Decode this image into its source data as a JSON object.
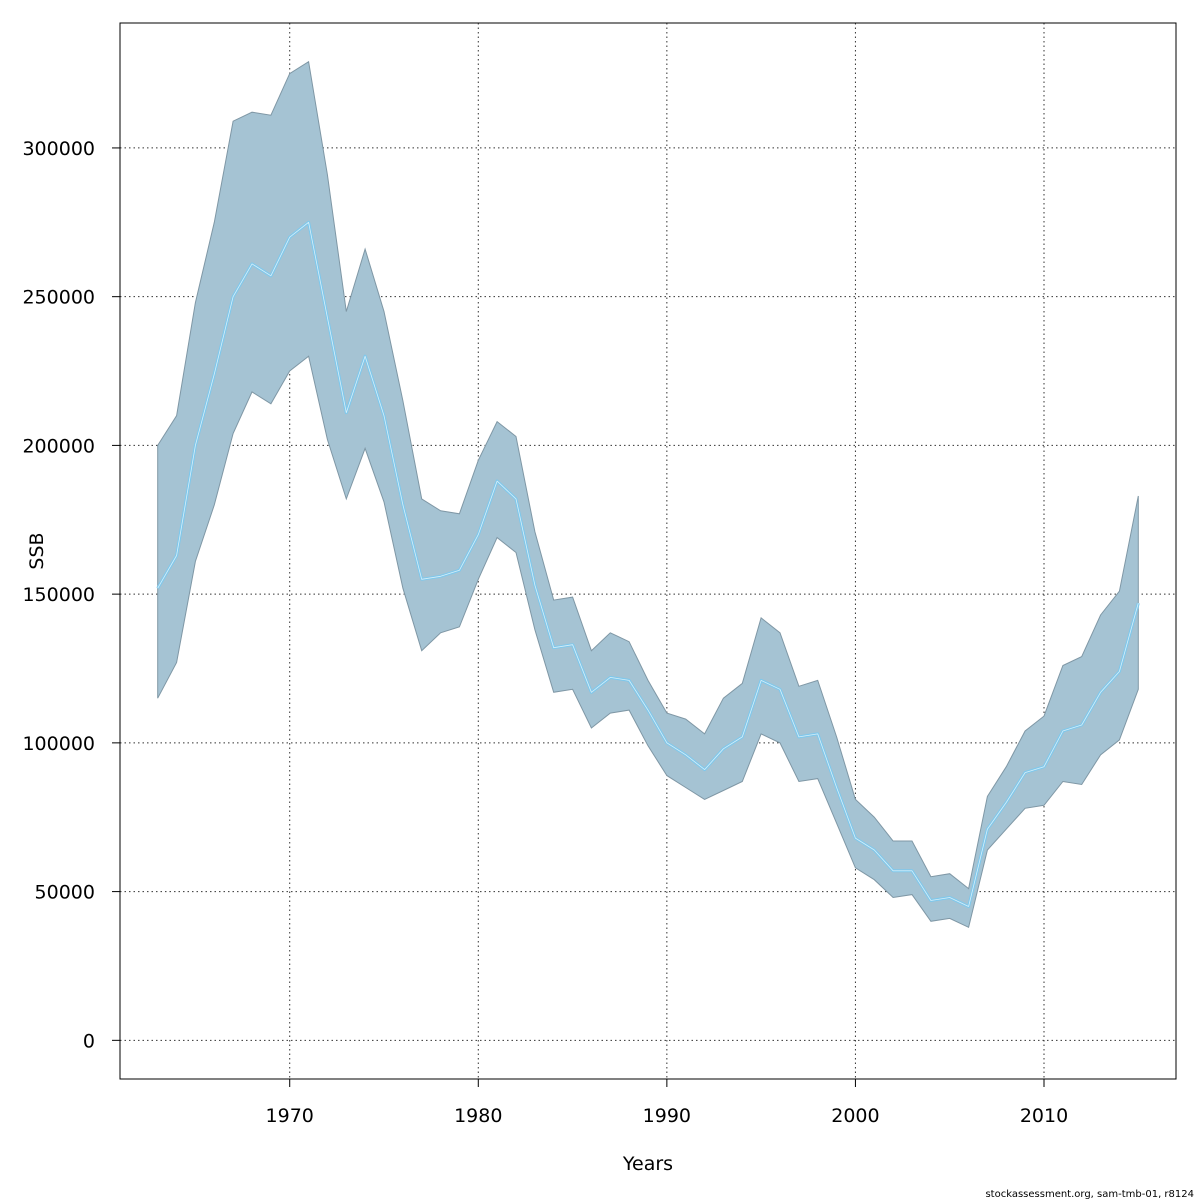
{
  "chart_data": {
    "type": "area",
    "title": "",
    "xlabel": "Years",
    "ylabel": "SSB",
    "xlim": [
      1961,
      2017
    ],
    "ylim": [
      -13000,
      342000
    ],
    "xticks": [
      1970,
      1980,
      1990,
      2000,
      2010
    ],
    "yticks": [
      0,
      50000,
      100000,
      150000,
      200000,
      250000,
      300000
    ],
    "grid": true,
    "legend": "none",
    "colors": {
      "band_fill": "#a5c3d3",
      "band_edge": "#7f97a5",
      "line": "#7ec8ec",
      "grid": "#333333"
    },
    "series": [
      {
        "x": [
          1963,
          1964,
          1965,
          1966,
          1967,
          1968,
          1969,
          1970,
          1971,
          1972,
          1973,
          1974,
          1975,
          1976,
          1977,
          1978,
          1979,
          1980,
          1981,
          1982,
          1983,
          1984,
          1985,
          1986,
          1987,
          1988,
          1989,
          1990,
          1991,
          1992,
          1993,
          1994,
          1995,
          1996,
          1997,
          1998,
          1999,
          2000,
          2001,
          2002,
          2003,
          2004,
          2005,
          2006,
          2007,
          2008,
          2009,
          2010,
          2011,
          2012,
          2013,
          2014,
          2015
        ],
        "estimate": [
          152000,
          163000,
          200000,
          224000,
          250000,
          261000,
          257000,
          270000,
          275000,
          243000,
          211000,
          230000,
          210000,
          180000,
          155000,
          156000,
          158000,
          170000,
          188000,
          182000,
          153000,
          132000,
          133000,
          117000,
          122000,
          121000,
          111000,
          100000,
          96000,
          91000,
          98000,
          102000,
          121000,
          118000,
          102000,
          103000,
          85000,
          68000,
          64000,
          57000,
          57000,
          47000,
          48000,
          45000,
          71000,
          80000,
          90000,
          92000,
          104000,
          106000,
          117000,
          124000,
          147000
        ],
        "lower": [
          115000,
          127000,
          161000,
          180000,
          204000,
          218000,
          214000,
          225000,
          230000,
          202000,
          182000,
          199000,
          181000,
          152000,
          131000,
          137000,
          139000,
          155000,
          169000,
          164000,
          138000,
          117000,
          118000,
          105000,
          110000,
          111000,
          99000,
          89000,
          85000,
          81000,
          84000,
          87000,
          103000,
          100000,
          87000,
          88000,
          73000,
          58000,
          54000,
          48000,
          49000,
          40000,
          41000,
          38000,
          64000,
          71000,
          78000,
          79000,
          87000,
          86000,
          96000,
          101000,
          118000
        ],
        "upper": [
          200000,
          210000,
          248000,
          275000,
          309000,
          312000,
          311000,
          325000,
          329000,
          291000,
          245000,
          266000,
          245000,
          215000,
          182000,
          178000,
          177000,
          195000,
          208000,
          203000,
          171000,
          148000,
          149000,
          131000,
          137000,
          134000,
          121000,
          110000,
          108000,
          103000,
          115000,
          120000,
          142000,
          137000,
          119000,
          121000,
          102000,
          81000,
          75000,
          67000,
          67000,
          55000,
          56000,
          51000,
          82000,
          92000,
          104000,
          109000,
          126000,
          129000,
          143000,
          151000,
          183000
        ]
      }
    ]
  },
  "footer": "stockassessment.org, sam-tmb-01, r8124"
}
